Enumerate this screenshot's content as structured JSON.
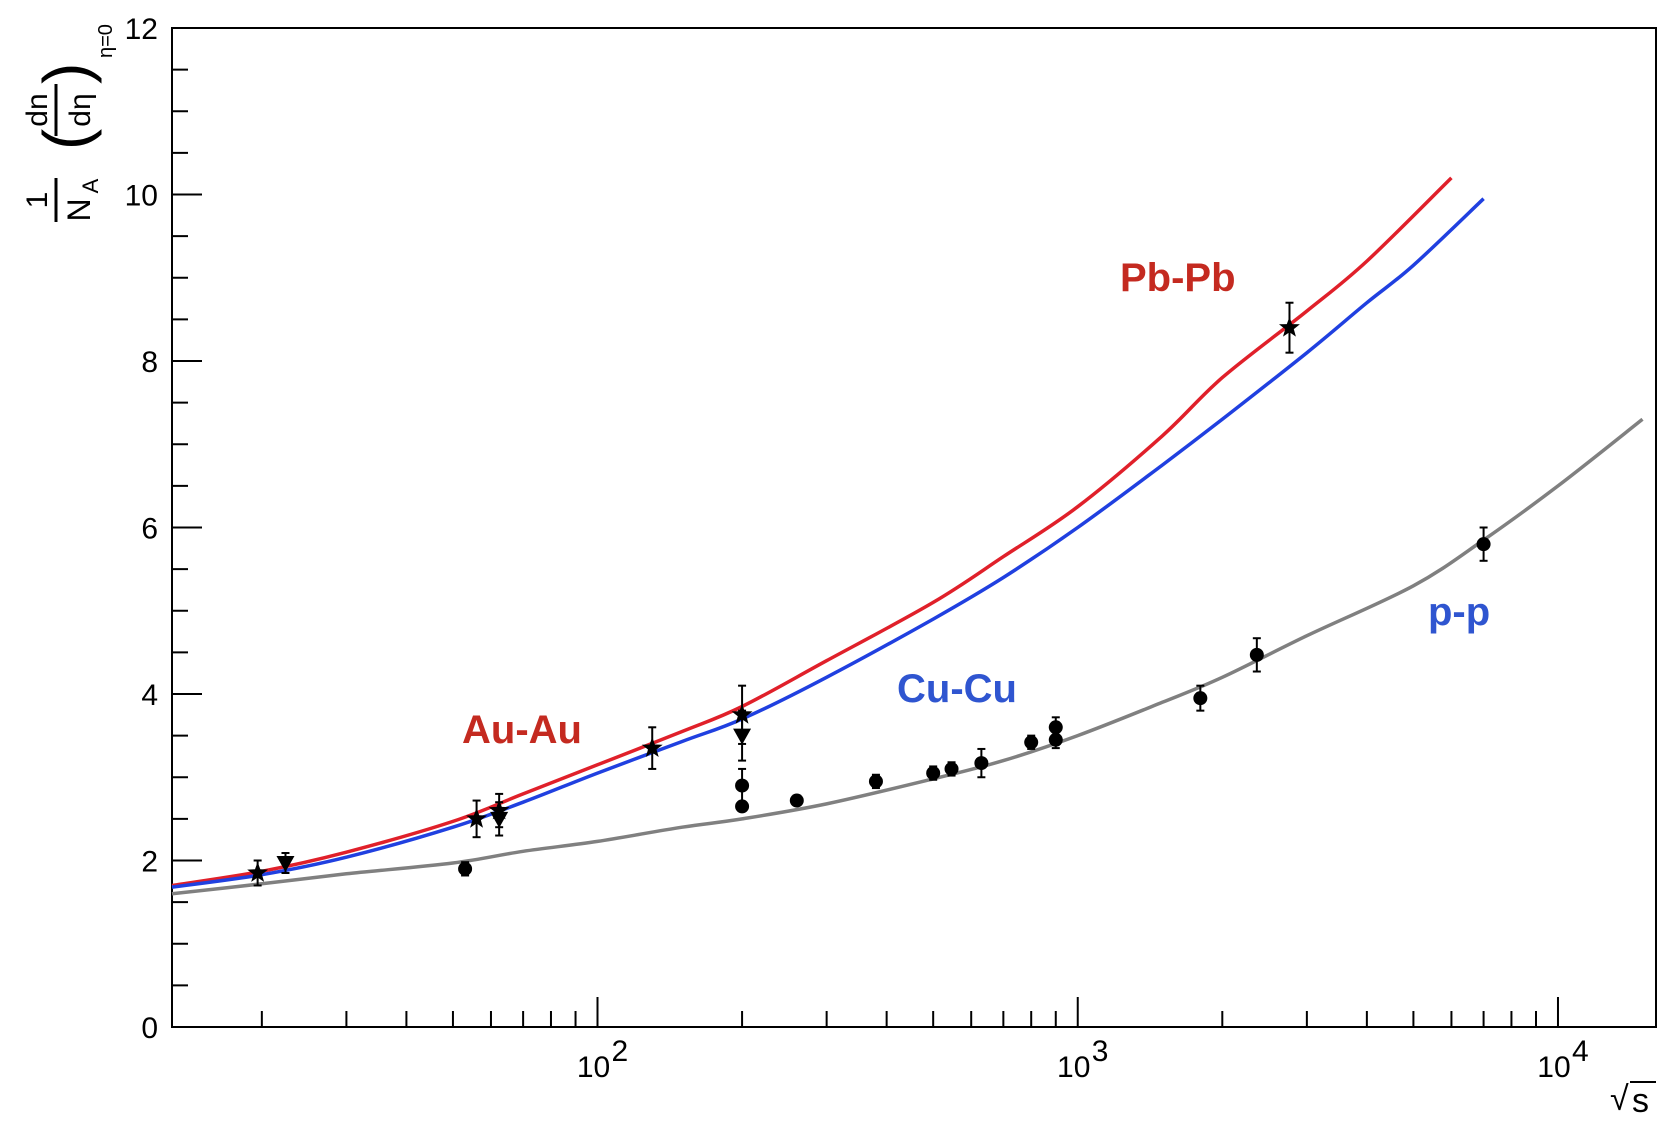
{
  "chart_data": {
    "type": "line",
    "title": "",
    "xscale": "log",
    "xlim": [
      13,
      16000
    ],
    "ylim": [
      0,
      12
    ],
    "xlabel": {
      "radical": "√",
      "var": "s"
    },
    "ylabel": {
      "num": "1",
      "den": "N",
      "den_sub": "A",
      "deriv_num": "dn",
      "deriv_den": "dη",
      "sub": "η=0"
    },
    "x_ticks": [
      {
        "value": 100,
        "base": "10",
        "exp": "2"
      },
      {
        "value": 1000,
        "base": "10",
        "exp": "3"
      },
      {
        "value": 10000,
        "base": "10",
        "exp": "4"
      }
    ],
    "y_ticks": [
      {
        "value": 0,
        "label": "0"
      },
      {
        "value": 2,
        "label": "2"
      },
      {
        "value": 4,
        "label": "4"
      },
      {
        "value": 6,
        "label": "6"
      },
      {
        "value": 8,
        "label": "8"
      },
      {
        "value": 10,
        "label": "10"
      },
      {
        "value": 12,
        "label": "12"
      }
    ],
    "series": [
      {
        "name": "Pb-Pb",
        "color": "#e0202a",
        "x": [
          13,
          20,
          30,
          50,
          70,
          100,
          150,
          200,
          300,
          500,
          700,
          1000,
          1500,
          2000,
          3000,
          4000,
          6000
        ],
        "y": [
          1.7,
          1.87,
          2.1,
          2.47,
          2.8,
          3.15,
          3.55,
          3.85,
          4.4,
          5.1,
          5.65,
          6.25,
          7.1,
          7.8,
          8.6,
          9.2,
          10.2
        ]
      },
      {
        "name": "Cu-Cu",
        "color": "#2040e0",
        "x": [
          13,
          20,
          30,
          50,
          70,
          100,
          150,
          200,
          300,
          500,
          700,
          1000,
          1500,
          2000,
          3000,
          4000,
          5000,
          7000
        ],
        "y": [
          1.68,
          1.83,
          2.04,
          2.4,
          2.7,
          3.05,
          3.43,
          3.7,
          4.2,
          4.9,
          5.4,
          6.0,
          6.75,
          7.3,
          8.1,
          8.7,
          9.15,
          9.95
        ]
      },
      {
        "name": "p-p",
        "color": "#808080",
        "x": [
          13,
          20,
          30,
          50,
          70,
          100,
          150,
          200,
          300,
          500,
          700,
          1000,
          1500,
          2000,
          3000,
          5000,
          7000,
          10000,
          15000
        ],
        "y": [
          1.6,
          1.72,
          1.84,
          1.97,
          2.11,
          2.23,
          2.4,
          2.5,
          2.68,
          2.98,
          3.2,
          3.5,
          3.9,
          4.2,
          4.7,
          5.3,
          5.85,
          6.5,
          7.3
        ]
      }
    ],
    "labels": [
      {
        "text": "Pb-Pb",
        "color": "#c42a20"
      },
      {
        "text": "Au-Au",
        "color": "#c42a20"
      },
      {
        "text": "Cu-Cu",
        "color": "#2f55d0"
      },
      {
        "text": "p-p",
        "color": "#2f55d0"
      }
    ],
    "points": {
      "stars": [
        {
          "x": 19.6,
          "y": 1.85,
          "err": 0.15
        },
        {
          "x": 56,
          "y": 2.5,
          "err": 0.22
        },
        {
          "x": 62.4,
          "y": 2.6,
          "err": 0.2
        },
        {
          "x": 130,
          "y": 3.35,
          "err": 0.25
        },
        {
          "x": 200,
          "y": 3.75,
          "err": 0.35
        },
        {
          "x": 2760,
          "y": 8.4,
          "err": 0.3
        }
      ],
      "triangles": [
        {
          "x": 22.4,
          "y": 1.97,
          "err": 0.12
        },
        {
          "x": 62.4,
          "y": 2.5,
          "err": 0.2
        },
        {
          "x": 200,
          "y": 3.5,
          "err": 0.3
        }
      ],
      "circles": [
        {
          "x": 53,
          "y": 1.9,
          "err": 0.08
        },
        {
          "x": 200,
          "y": 2.9,
          "err": 0.2
        },
        {
          "x": 200,
          "y": 2.65,
          "err": 0.05
        },
        {
          "x": 260,
          "y": 2.72,
          "err": 0.04
        },
        {
          "x": 380,
          "y": 2.95,
          "err": 0.08
        },
        {
          "x": 500,
          "y": 3.05,
          "err": 0.08
        },
        {
          "x": 546,
          "y": 3.1,
          "err": 0.08
        },
        {
          "x": 630,
          "y": 3.17,
          "err": 0.17
        },
        {
          "x": 800,
          "y": 3.42,
          "err": 0.08
        },
        {
          "x": 900,
          "y": 3.6,
          "err": 0.12
        },
        {
          "x": 900,
          "y": 3.45,
          "err": 0.1
        },
        {
          "x": 1800,
          "y": 3.95,
          "err": 0.15
        },
        {
          "x": 2360,
          "y": 4.47,
          "err": 0.2
        },
        {
          "x": 7000,
          "y": 5.8,
          "err": 0.2
        }
      ]
    }
  }
}
